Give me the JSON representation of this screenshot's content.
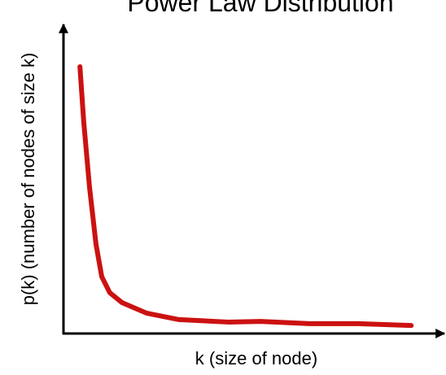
{
  "chart_data": {
    "type": "line",
    "title": "Power Law Distribution",
    "xlabel": "k (size of node)",
    "ylabel": "p(k) (number of nodes of size k)",
    "x": [
      4.3,
      5.3,
      6.8,
      8.5,
      10,
      12.1,
      15.3,
      21.7,
      30.2,
      43,
      51.5,
      64.3,
      77,
      90.9
    ],
    "values": [
      86.3,
      68.4,
      47.4,
      28.9,
      18.4,
      13.2,
      10,
      6.6,
      4.5,
      3.7,
      3.9,
      3.2,
      3.2,
      2.6
    ],
    "color": "#cc1111",
    "xlim": [
      0,
      100
    ],
    "ylim": [
      0,
      100
    ]
  }
}
